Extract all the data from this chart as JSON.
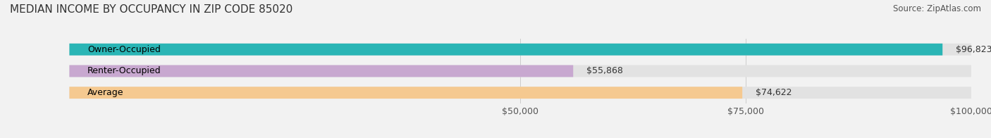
{
  "title": "MEDIAN INCOME BY OCCUPANCY IN ZIP CODE 85020",
  "source": "Source: ZipAtlas.com",
  "categories": [
    "Owner-Occupied",
    "Renter-Occupied",
    "Average"
  ],
  "values": [
    96823,
    55868,
    74622
  ],
  "labels": [
    "$96,823",
    "$55,868",
    "$74,622"
  ],
  "bar_colors": [
    "#2ab5b5",
    "#c8a8d0",
    "#f5c990"
  ],
  "xlim": [
    0,
    100000
  ],
  "xticks": [
    50000,
    75000,
    100000
  ],
  "xticklabels": [
    "$50,000",
    "$75,000",
    "$100,000"
  ],
  "background_color": "#f2f2f2",
  "bar_bg_color": "#e2e2e2",
  "title_fontsize": 11,
  "source_fontsize": 8.5,
  "label_fontsize": 9,
  "tick_fontsize": 9,
  "cat_fontsize": 9
}
